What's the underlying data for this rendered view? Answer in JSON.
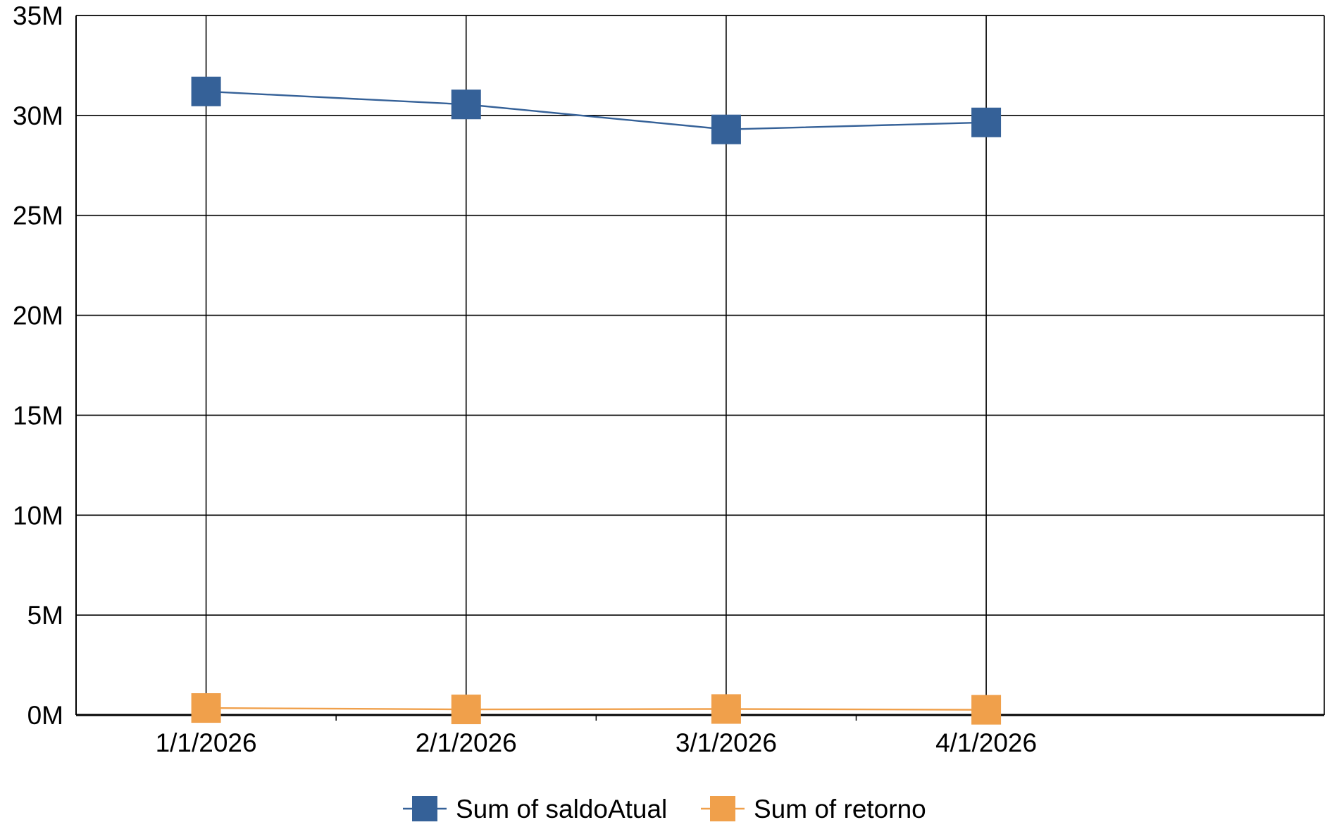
{
  "chart_data": {
    "type": "line",
    "title": "",
    "xlabel": "",
    "ylabel": "",
    "categories": [
      "1/1/2026",
      "2/1/2026",
      "3/1/2026",
      "4/1/2026"
    ],
    "ylim": [
      0,
      35000000
    ],
    "yticks": [
      {
        "value": 0,
        "label": "0M"
      },
      {
        "value": 5000000,
        "label": "5M"
      },
      {
        "value": 10000000,
        "label": "10M"
      },
      {
        "value": 15000000,
        "label": "15M"
      },
      {
        "value": 20000000,
        "label": "20M"
      },
      {
        "value": 25000000,
        "label": "25M"
      },
      {
        "value": 30000000,
        "label": "30M"
      },
      {
        "value": 35000000,
        "label": "35M"
      }
    ],
    "grid": true,
    "legend_position": "bottom",
    "series": [
      {
        "name": "Sum of saldoAtual",
        "color": "#356198",
        "marker": "square",
        "values": [
          31200000,
          30550000,
          29300000,
          29650000
        ]
      },
      {
        "name": "Sum of retorno",
        "color": "#f0a04b",
        "marker": "square",
        "values": [
          350000,
          280000,
          300000,
          260000
        ]
      }
    ]
  }
}
